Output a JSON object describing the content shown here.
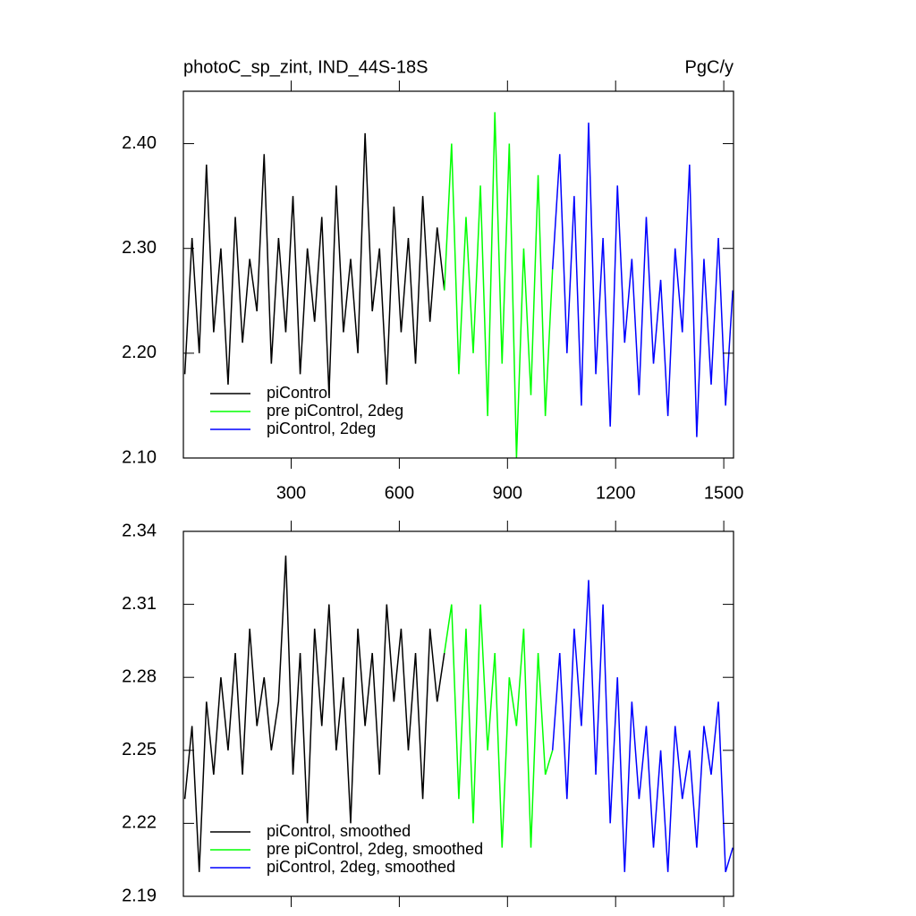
{
  "chart_data": [
    {
      "type": "line",
      "title": "photoC_sp_zint, IND_44S-18S",
      "subtitle": "PgC/y",
      "xlim": [
        1,
        1527
      ],
      "xticks": [
        300,
        600,
        900,
        1200,
        1500
      ],
      "ylim": [
        2.1,
        2.45
      ],
      "yticks": [
        {
          "value": 2.1,
          "label": "2.10"
        },
        {
          "value": 2.2,
          "label": "2.20"
        },
        {
          "value": 2.3,
          "label": "2.30"
        },
        {
          "value": 2.4,
          "label": "2.40"
        }
      ],
      "legend": "lower left",
      "series": [
        {
          "name": "piControl",
          "color": "#000000",
          "x": [
            5,
            25,
            45,
            65,
            85,
            105,
            125,
            145,
            165,
            185,
            205,
            225,
            245,
            265,
            285,
            305,
            325,
            345,
            365,
            385,
            405,
            425,
            445,
            465,
            485,
            505,
            525,
            545,
            565,
            585,
            605,
            625,
            645,
            665,
            685,
            705,
            725
          ],
          "values": [
            2.18,
            2.31,
            2.2,
            2.38,
            2.22,
            2.3,
            2.17,
            2.33,
            2.21,
            2.29,
            2.24,
            2.39,
            2.19,
            2.31,
            2.22,
            2.35,
            2.18,
            2.3,
            2.23,
            2.33,
            2.16,
            2.36,
            2.22,
            2.29,
            2.2,
            2.41,
            2.24,
            2.3,
            2.17,
            2.34,
            2.22,
            2.31,
            2.19,
            2.35,
            2.23,
            2.32,
            2.26
          ]
        },
        {
          "name": "pre piControl, 2deg",
          "color": "#00ff00",
          "x": [
            725,
            745,
            765,
            785,
            805,
            825,
            845,
            865,
            885,
            905,
            925,
            945,
            965,
            985,
            1005,
            1025
          ],
          "values": [
            2.26,
            2.4,
            2.18,
            2.33,
            2.2,
            2.36,
            2.14,
            2.43,
            2.19,
            2.4,
            2.1,
            2.3,
            2.16,
            2.37,
            2.14,
            2.28
          ]
        },
        {
          "name": "piControl, 2deg",
          "color": "#0000ff",
          "x": [
            1025,
            1045,
            1065,
            1085,
            1105,
            1125,
            1145,
            1165,
            1185,
            1205,
            1225,
            1245,
            1265,
            1285,
            1305,
            1325,
            1345,
            1365,
            1385,
            1405,
            1425,
            1445,
            1465,
            1485,
            1505,
            1525
          ],
          "values": [
            2.28,
            2.39,
            2.2,
            2.35,
            2.15,
            2.42,
            2.18,
            2.31,
            2.13,
            2.36,
            2.21,
            2.29,
            2.16,
            2.33,
            2.19,
            2.27,
            2.14,
            2.3,
            2.22,
            2.38,
            2.12,
            2.29,
            2.17,
            2.31,
            2.15,
            2.26
          ]
        }
      ]
    },
    {
      "type": "line",
      "xlim": [
        1,
        1527
      ],
      "xticks": [
        300,
        600,
        900,
        1200,
        1500
      ],
      "ylim": [
        2.19,
        2.34
      ],
      "yticks": [
        2.19,
        2.22,
        2.25,
        2.28,
        2.31,
        2.34
      ],
      "legend": "lower left",
      "series": [
        {
          "name": "piControl, smoothed",
          "color": "#000000",
          "x": [
            5,
            25,
            45,
            65,
            85,
            105,
            125,
            145,
            165,
            185,
            205,
            225,
            245,
            265,
            285,
            305,
            325,
            345,
            365,
            385,
            405,
            425,
            445,
            465,
            485,
            505,
            525,
            545,
            565,
            585,
            605,
            625,
            645,
            665,
            685,
            705,
            725
          ],
          "values": [
            2.23,
            2.26,
            2.2,
            2.27,
            2.24,
            2.28,
            2.25,
            2.29,
            2.24,
            2.3,
            2.26,
            2.28,
            2.25,
            2.27,
            2.33,
            2.24,
            2.29,
            2.22,
            2.3,
            2.26,
            2.31,
            2.25,
            2.28,
            2.22,
            2.3,
            2.26,
            2.29,
            2.24,
            2.31,
            2.27,
            2.3,
            2.25,
            2.29,
            2.23,
            2.3,
            2.27,
            2.29
          ]
        },
        {
          "name": "pre piControl, 2deg, smoothed",
          "color": "#00ff00",
          "x": [
            725,
            745,
            765,
            785,
            805,
            825,
            845,
            865,
            885,
            905,
            925,
            945,
            965,
            985,
            1005,
            1025
          ],
          "values": [
            2.29,
            2.31,
            2.23,
            2.3,
            2.22,
            2.31,
            2.25,
            2.29,
            2.21,
            2.28,
            2.26,
            2.3,
            2.21,
            2.29,
            2.24,
            2.25
          ]
        },
        {
          "name": "piControl, 2deg, smoothed",
          "color": "#0000ff",
          "x": [
            1025,
            1045,
            1065,
            1085,
            1105,
            1125,
            1145,
            1165,
            1185,
            1205,
            1225,
            1245,
            1265,
            1285,
            1305,
            1325,
            1345,
            1365,
            1385,
            1405,
            1425,
            1445,
            1465,
            1485,
            1505,
            1525
          ],
          "values": [
            2.25,
            2.29,
            2.23,
            2.3,
            2.26,
            2.32,
            2.24,
            2.31,
            2.22,
            2.28,
            2.2,
            2.27,
            2.23,
            2.26,
            2.21,
            2.25,
            2.2,
            2.26,
            2.23,
            2.25,
            2.21,
            2.26,
            2.24,
            2.27,
            2.2,
            2.21
          ]
        }
      ]
    }
  ]
}
